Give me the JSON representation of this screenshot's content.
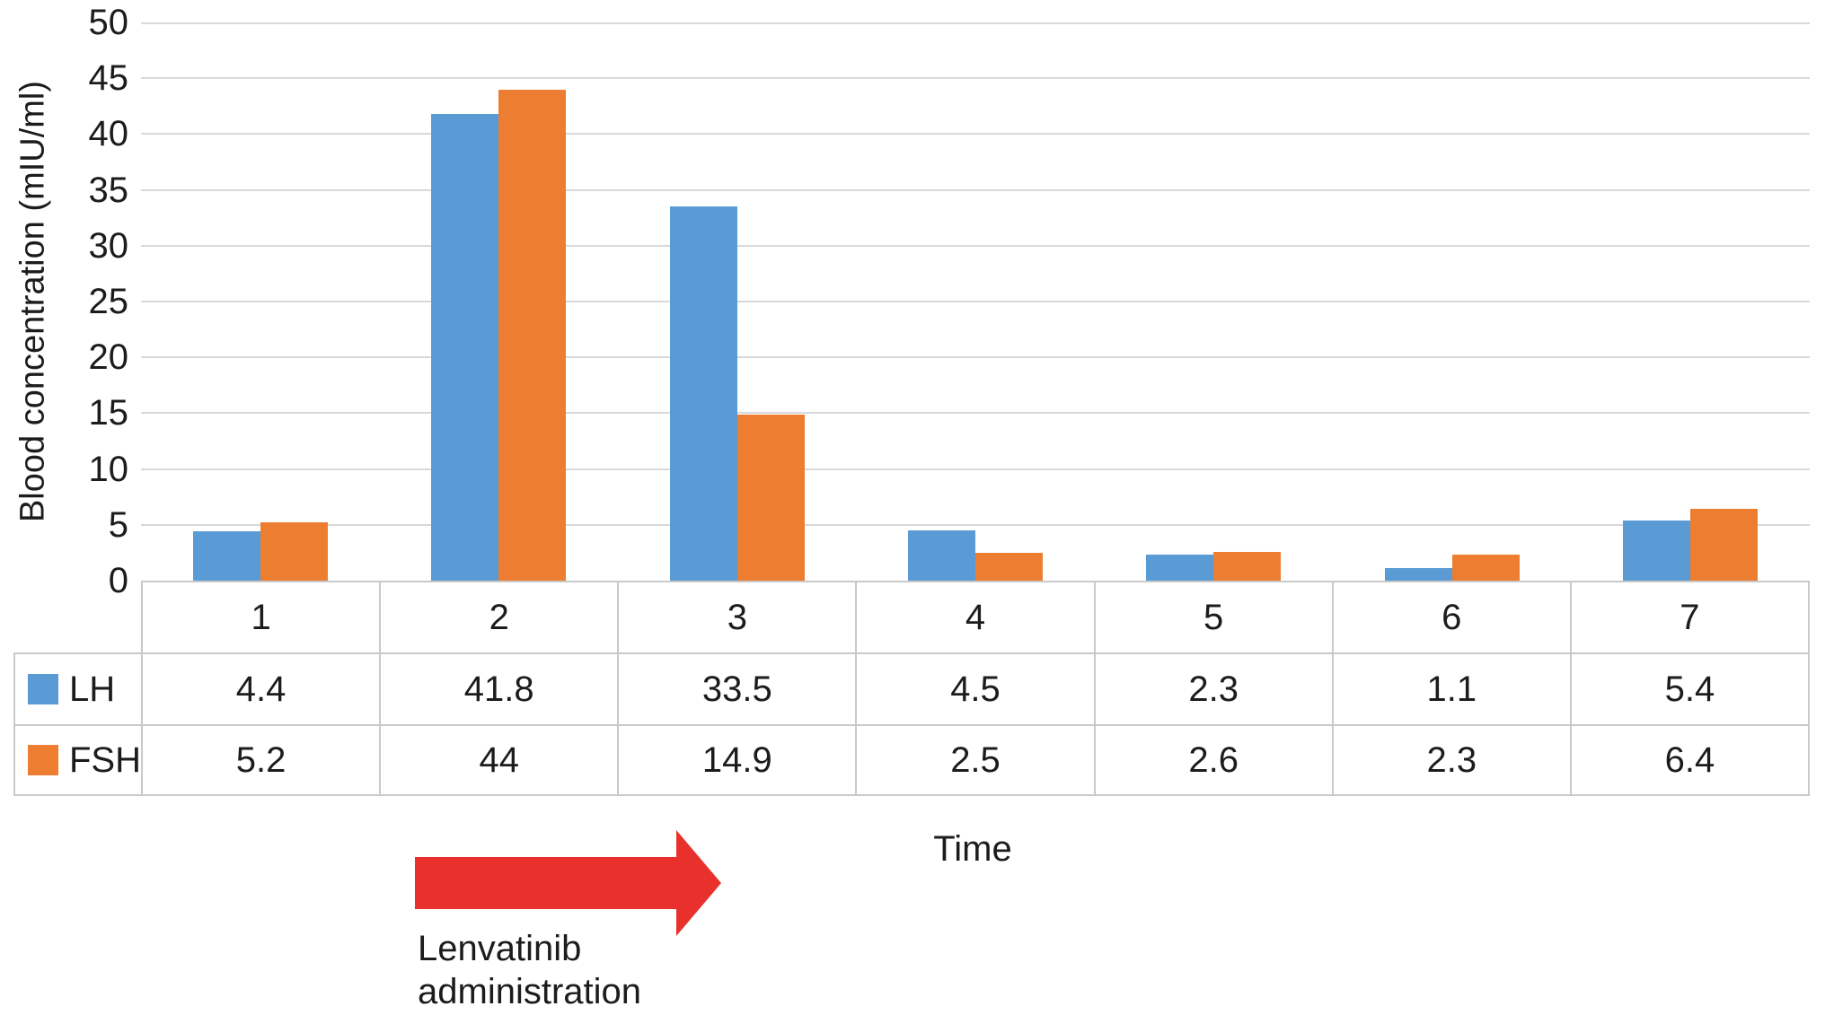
{
  "chart_data": {
    "type": "bar",
    "title": "",
    "categories": [
      "1",
      "2",
      "3",
      "4",
      "5",
      "6",
      "7"
    ],
    "series": [
      {
        "name": "LH",
        "color": "#5B9BD5",
        "values": [
          4.4,
          41.8,
          33.5,
          4.5,
          2.3,
          1.1,
          5.4
        ]
      },
      {
        "name": "FSH",
        "color": "#ED7D31",
        "values": [
          5.2,
          44,
          14.9,
          2.5,
          2.6,
          2.3,
          6.4
        ]
      }
    ],
    "xlabel": "Time",
    "ylabel": "Blood concentration (mIU/ml)",
    "ylim": [
      0,
      50
    ],
    "ytick_step": 5,
    "grid": "horizontal",
    "legend_position": "table-left",
    "data_table_shown": true
  },
  "annotations": {
    "time_label": "Time",
    "arrow_label_line1": "Lenvatinib",
    "arrow_label_line2": "administration",
    "arrow_color": "#E8312C"
  },
  "colors": {
    "gridline": "#d9d9d9",
    "table_border": "#c9c9c9",
    "text": "#1c1c1c",
    "background": "#ffffff"
  }
}
